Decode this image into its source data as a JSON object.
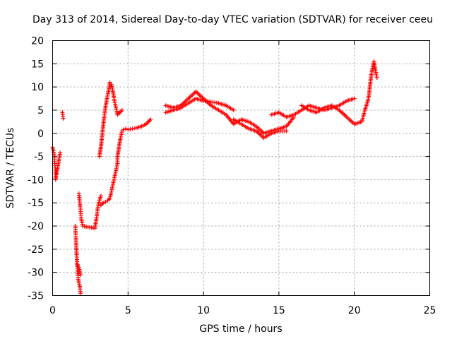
{
  "chart_data": {
    "type": "scatter",
    "title": "Day 313 of 2014, Sidereal Day-to-day VTEC variation (SDTVAR) for receiver ceeu",
    "xlabel": "GPS time / hours",
    "ylabel": "SDTVAR / TECUs",
    "xlim": [
      0,
      25
    ],
    "ylim": [
      -35,
      20
    ],
    "xticks": [
      0,
      5,
      10,
      15,
      20,
      25
    ],
    "yticks": [
      -35,
      -30,
      -25,
      -20,
      -15,
      -10,
      -5,
      0,
      5,
      10,
      15,
      20
    ],
    "grid": true,
    "marker": "plus",
    "color": "#ff0000",
    "series": [
      {
        "name": "SDTVAR",
        "trace_points": [
          [
            0.0,
            -3.0
          ],
          [
            0.1,
            -4.5
          ],
          [
            0.15,
            -6.5
          ],
          [
            0.2,
            -8.5
          ],
          [
            0.2,
            -10.0
          ],
          [
            0.5,
            -4.2
          ],
          [
            0.65,
            4.5
          ],
          [
            0.7,
            3.2
          ],
          [
            1.5,
            -20.0
          ],
          [
            1.55,
            -23.0
          ],
          [
            1.6,
            -26.5
          ],
          [
            1.65,
            -29.5
          ],
          [
            1.7,
            -31.5
          ],
          [
            1.8,
            -33.0
          ],
          [
            1.85,
            -34.5
          ],
          [
            1.6,
            -28.0
          ],
          [
            1.75,
            -29.0
          ],
          [
            1.85,
            -30.5
          ],
          [
            1.75,
            -13.0
          ],
          [
            1.8,
            -15.0
          ],
          [
            1.85,
            -16.5
          ],
          [
            1.9,
            -18.5
          ],
          [
            2.0,
            -20.0
          ],
          [
            2.8,
            -20.5
          ],
          [
            2.9,
            -18.5
          ],
          [
            3.0,
            -16.0
          ],
          [
            3.1,
            -14.5
          ],
          [
            3.2,
            -13.5
          ],
          [
            3.1,
            -5.0
          ],
          [
            3.2,
            -3.0
          ],
          [
            3.3,
            0.0
          ],
          [
            3.4,
            3.0
          ],
          [
            3.5,
            5.5
          ],
          [
            3.6,
            7.5
          ],
          [
            3.7,
            9.0
          ],
          [
            3.8,
            11.0
          ],
          [
            3.9,
            10.5
          ],
          [
            4.0,
            9.0
          ],
          [
            4.1,
            7.0
          ],
          [
            4.2,
            5.5
          ],
          [
            4.3,
            4.0
          ],
          [
            4.45,
            4.5
          ],
          [
            4.6,
            5.0
          ],
          [
            3.2,
            -15.5
          ],
          [
            3.35,
            -15.0
          ],
          [
            3.5,
            -14.8
          ],
          [
            3.65,
            -14.5
          ],
          [
            3.8,
            -14.0
          ],
          [
            3.9,
            -12.5
          ],
          [
            4.0,
            -11.0
          ],
          [
            4.1,
            -9.5
          ],
          [
            4.2,
            -8.0
          ],
          [
            4.3,
            -6.5
          ],
          [
            4.3,
            -5.0
          ],
          [
            4.4,
            -3.0
          ],
          [
            4.5,
            -1.0
          ],
          [
            4.6,
            0.5
          ],
          [
            4.7,
            0.8
          ],
          [
            4.85,
            1.0
          ],
          [
            5.0,
            0.8
          ],
          [
            5.3,
            1.0
          ],
          [
            5.6,
            1.2
          ],
          [
            5.9,
            1.5
          ],
          [
            6.2,
            2.0
          ],
          [
            6.5,
            3.0
          ],
          [
            7.5,
            4.5
          ],
          [
            8.0,
            5.0
          ],
          [
            8.5,
            5.5
          ],
          [
            9.0,
            6.5
          ],
          [
            9.5,
            7.5
          ],
          [
            10.0,
            7.0
          ],
          [
            10.5,
            6.8
          ],
          [
            11.0,
            6.5
          ],
          [
            11.5,
            6.0
          ],
          [
            12.0,
            5.0
          ],
          [
            7.5,
            6.0
          ],
          [
            8.0,
            5.5
          ],
          [
            8.5,
            6.0
          ],
          [
            9.0,
            7.5
          ],
          [
            9.5,
            9.0
          ],
          [
            10.0,
            7.5
          ],
          [
            10.5,
            6.0
          ],
          [
            11.0,
            5.0
          ],
          [
            11.5,
            4.0
          ],
          [
            12.0,
            2.0
          ],
          [
            12.5,
            3.0
          ],
          [
            13.0,
            2.5
          ],
          [
            13.5,
            1.5
          ],
          [
            14.0,
            0.0
          ],
          [
            14.5,
            0.5
          ],
          [
            15.0,
            1.0
          ],
          [
            15.5,
            1.5
          ],
          [
            16.0,
            3.5
          ],
          [
            12.0,
            3.0
          ],
          [
            12.5,
            2.0
          ],
          [
            13.0,
            1.0
          ],
          [
            13.5,
            0.5
          ],
          [
            14.0,
            -1.0
          ],
          [
            14.5,
            0.0
          ],
          [
            15.0,
            0.5
          ],
          [
            15.5,
            0.5
          ],
          [
            14.5,
            4.0
          ],
          [
            15.0,
            4.5
          ],
          [
            15.5,
            3.5
          ],
          [
            16.0,
            4.0
          ],
          [
            16.5,
            5.0
          ],
          [
            17.0,
            6.0
          ],
          [
            17.5,
            5.5
          ],
          [
            18.0,
            5.0
          ],
          [
            18.5,
            5.5
          ],
          [
            19.0,
            6.0
          ],
          [
            19.5,
            7.0
          ],
          [
            20.0,
            7.5
          ],
          [
            16.5,
            6.0
          ],
          [
            17.0,
            5.0
          ],
          [
            17.5,
            4.5
          ],
          [
            18.0,
            5.5
          ],
          [
            18.5,
            6.0
          ],
          [
            19.0,
            5.0
          ],
          [
            19.5,
            3.5
          ],
          [
            20.0,
            2.0
          ],
          [
            20.5,
            2.5
          ],
          [
            20.7,
            5.0
          ],
          [
            20.9,
            7.0
          ],
          [
            21.0,
            9.0
          ],
          [
            21.1,
            12.0
          ],
          [
            21.2,
            14.0
          ],
          [
            21.3,
            15.5
          ],
          [
            21.4,
            13.5
          ],
          [
            21.5,
            12.0
          ]
        ]
      }
    ]
  }
}
